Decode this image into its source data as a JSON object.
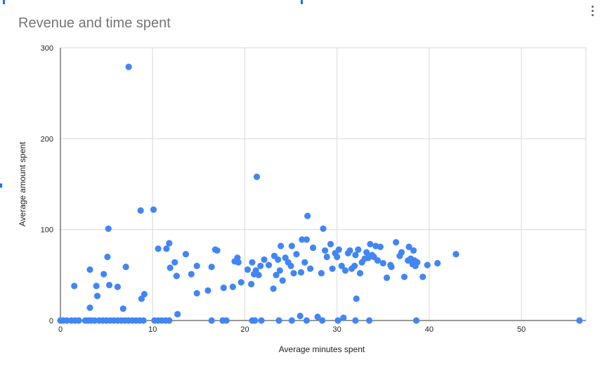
{
  "colors": {
    "point": "#4285f4",
    "grid": "#d9d9d9",
    "axis": "#333333",
    "title": "#757575"
  },
  "menu": {
    "icon": "more-vert-icon"
  },
  "chart_data": {
    "type": "scatter",
    "title": "Revenue and time spent",
    "xlabel": "Average minutes spent",
    "ylabel": "Average amount spent",
    "xlim": [
      0,
      57
    ],
    "ylim": [
      0,
      300
    ],
    "x_ticks": [
      0,
      10,
      20,
      30,
      40,
      50
    ],
    "y_ticks": [
      0,
      100,
      200,
      300
    ],
    "x_tick_labels": [
      "0",
      "10",
      "20",
      "30",
      "40",
      "50"
    ],
    "y_tick_labels": [
      "0",
      "100",
      "200",
      "300"
    ],
    "grid": true,
    "legend": "none",
    "points": [
      [
        0,
        0
      ],
      [
        0.3,
        0
      ],
      [
        0.7,
        0
      ],
      [
        1.2,
        0
      ],
      [
        1.6,
        0
      ],
      [
        2.0,
        0
      ],
      [
        2.7,
        0
      ],
      [
        3.0,
        0
      ],
      [
        3.3,
        0
      ],
      [
        3.7,
        0
      ],
      [
        4.2,
        0
      ],
      [
        4.6,
        0
      ],
      [
        5.0,
        0
      ],
      [
        5.4,
        0
      ],
      [
        5.8,
        0
      ],
      [
        6.2,
        0
      ],
      [
        6.6,
        0
      ],
      [
        7.0,
        0
      ],
      [
        7.4,
        0
      ],
      [
        7.8,
        0
      ],
      [
        8.2,
        0
      ],
      [
        8.6,
        0
      ],
      [
        9.0,
        0
      ],
      [
        10.2,
        0
      ],
      [
        10.6,
        0
      ],
      [
        11.0,
        0
      ],
      [
        11.4,
        0
      ],
      [
        11.8,
        0
      ],
      [
        16.4,
        0
      ],
      [
        17.6,
        0
      ],
      [
        18.0,
        0
      ],
      [
        20.8,
        0
      ],
      [
        21.1,
        0
      ],
      [
        21.8,
        0
      ],
      [
        23.7,
        0
      ],
      [
        25.1,
        0
      ],
      [
        26.7,
        0
      ],
      [
        28.4,
        0
      ],
      [
        30.1,
        0
      ],
      [
        32.0,
        0
      ],
      [
        33.5,
        0
      ],
      [
        38.6,
        0
      ],
      [
        56.3,
        0
      ],
      [
        1.5,
        38
      ],
      [
        3.2,
        14
      ],
      [
        3.2,
        56
      ],
      [
        3.9,
        38
      ],
      [
        4.0,
        27
      ],
      [
        4.7,
        51
      ],
      [
        5.1,
        70
      ],
      [
        5.2,
        101
      ],
      [
        5.3,
        39
      ],
      [
        6.2,
        37
      ],
      [
        6.8,
        13
      ],
      [
        7.1,
        59
      ],
      [
        7.4,
        279
      ],
      [
        8.7,
        121
      ],
      [
        8.8,
        24
      ],
      [
        9.1,
        29
      ],
      [
        10.1,
        122
      ],
      [
        10.6,
        79
      ],
      [
        11.5,
        79
      ],
      [
        11.8,
        85
      ],
      [
        11.9,
        58
      ],
      [
        12.4,
        64
      ],
      [
        12.6,
        49
      ],
      [
        12.7,
        7
      ],
      [
        13.6,
        73
      ],
      [
        14.2,
        51
      ],
      [
        14.8,
        60
      ],
      [
        14.8,
        30
      ],
      [
        16.0,
        33
      ],
      [
        16.4,
        59
      ],
      [
        16.8,
        78
      ],
      [
        17.0,
        77
      ],
      [
        17.7,
        36
      ],
      [
        18.7,
        37
      ],
      [
        18.9,
        65
      ],
      [
        19.2,
        69
      ],
      [
        19.3,
        64
      ],
      [
        19.6,
        42
      ],
      [
        20.3,
        56
      ],
      [
        20.7,
        40
      ],
      [
        20.8,
        64
      ],
      [
        21.0,
        51
      ],
      [
        21.2,
        55
      ],
      [
        21.3,
        158
      ],
      [
        21.5,
        50
      ],
      [
        21.7,
        60
      ],
      [
        22.1,
        67
      ],
      [
        22.6,
        61
      ],
      [
        23.1,
        35
      ],
      [
        23.2,
        71
      ],
      [
        23.4,
        50
      ],
      [
        23.6,
        67
      ],
      [
        23.8,
        55
      ],
      [
        23.9,
        82
      ],
      [
        24.1,
        44
      ],
      [
        24.4,
        69
      ],
      [
        24.7,
        64
      ],
      [
        25.0,
        60
      ],
      [
        25.1,
        82
      ],
      [
        25.3,
        52
      ],
      [
        25.6,
        73
      ],
      [
        26.0,
        5
      ],
      [
        26.1,
        53
      ],
      [
        26.2,
        89
      ],
      [
        26.5,
        64
      ],
      [
        26.7,
        89
      ],
      [
        26.8,
        115
      ],
      [
        27.1,
        57
      ],
      [
        27.4,
        80
      ],
      [
        27.9,
        4
      ],
      [
        28.3,
        52
      ],
      [
        28.5,
        101
      ],
      [
        28.7,
        77
      ],
      [
        28.9,
        70
      ],
      [
        29.3,
        84
      ],
      [
        29.5,
        57
      ],
      [
        29.8,
        74
      ],
      [
        30.0,
        70
      ],
      [
        30.2,
        78
      ],
      [
        30.5,
        60
      ],
      [
        30.7,
        3
      ],
      [
        30.9,
        55
      ],
      [
        31.2,
        74
      ],
      [
        31.4,
        77
      ],
      [
        31.6,
        57
      ],
      [
        31.9,
        60
      ],
      [
        32.0,
        72
      ],
      [
        32.1,
        24
      ],
      [
        32.3,
        78
      ],
      [
        32.5,
        52
      ],
      [
        32.7,
        64
      ],
      [
        33.0,
        68
      ],
      [
        33.2,
        75
      ],
      [
        33.4,
        69
      ],
      [
        33.6,
        84
      ],
      [
        33.8,
        72
      ],
      [
        34.0,
        70
      ],
      [
        34.2,
        82
      ],
      [
        34.4,
        66
      ],
      [
        34.7,
        81
      ],
      [
        35.0,
        63
      ],
      [
        35.4,
        47
      ],
      [
        35.8,
        61
      ],
      [
        35.9,
        59
      ],
      [
        36.4,
        86
      ],
      [
        36.8,
        71
      ],
      [
        37.0,
        75
      ],
      [
        37.3,
        48
      ],
      [
        37.7,
        66
      ],
      [
        37.8,
        81
      ],
      [
        38.0,
        68
      ],
      [
        38.2,
        62
      ],
      [
        38.3,
        77
      ],
      [
        38.4,
        66
      ],
      [
        38.5,
        60
      ],
      [
        38.7,
        64
      ],
      [
        39.3,
        48
      ],
      [
        39.8,
        61
      ],
      [
        40.9,
        63
      ],
      [
        42.9,
        73
      ]
    ]
  }
}
